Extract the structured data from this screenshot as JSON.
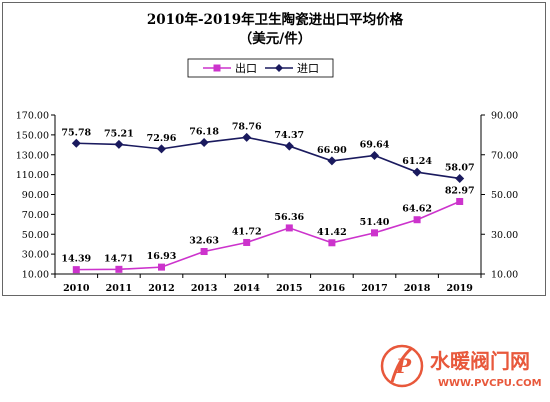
{
  "chart_data": {
    "type": "line",
    "title": "2010年-2019年卫生陶瓷进出口平均价格",
    "subtitle": "（美元/件）",
    "categories": [
      "2010",
      "2011",
      "2012",
      "2013",
      "2014",
      "2015",
      "2016",
      "2017",
      "2018",
      "2019"
    ],
    "series": [
      {
        "name": "出口",
        "axis": "left",
        "color": "#cc33cc",
        "marker": "square",
        "values": [
          14.39,
          14.71,
          16.93,
          32.63,
          41.72,
          56.36,
          41.42,
          51.4,
          64.62,
          82.97
        ],
        "labels": [
          "14.39",
          "14.71",
          "16.93",
          "32.63",
          "41.72",
          "56.36",
          "41.42",
          "51.40",
          "64.62",
          "82.97"
        ]
      },
      {
        "name": "进口",
        "axis": "right",
        "color": "#1a1a5e",
        "marker": "diamond",
        "values": [
          75.78,
          75.21,
          72.96,
          76.18,
          78.76,
          74.37,
          66.9,
          69.64,
          61.24,
          58.07
        ],
        "labels": [
          "75.78",
          "75.21",
          "72.96",
          "76.18",
          "78.76",
          "74.37",
          "66.90",
          "69.64",
          "61.24",
          "58.07"
        ]
      }
    ],
    "y_left": {
      "ylim": [
        10,
        170
      ],
      "ticks": [
        "10.00",
        "30.00",
        "50.00",
        "70.00",
        "90.00",
        "110.00",
        "130.00",
        "150.00",
        "170.00"
      ]
    },
    "y_right": {
      "ylim": [
        10,
        90
      ],
      "ticks": [
        "10.00",
        "30.00",
        "50.00",
        "70.00",
        "90.00"
      ]
    },
    "grid": false,
    "legend_placement": "top-center"
  },
  "watermark": {
    "text": "水暖阀门网",
    "url": "WWW.PVCPU.COM",
    "logo_letter": "P",
    "color": "#e8583b"
  }
}
